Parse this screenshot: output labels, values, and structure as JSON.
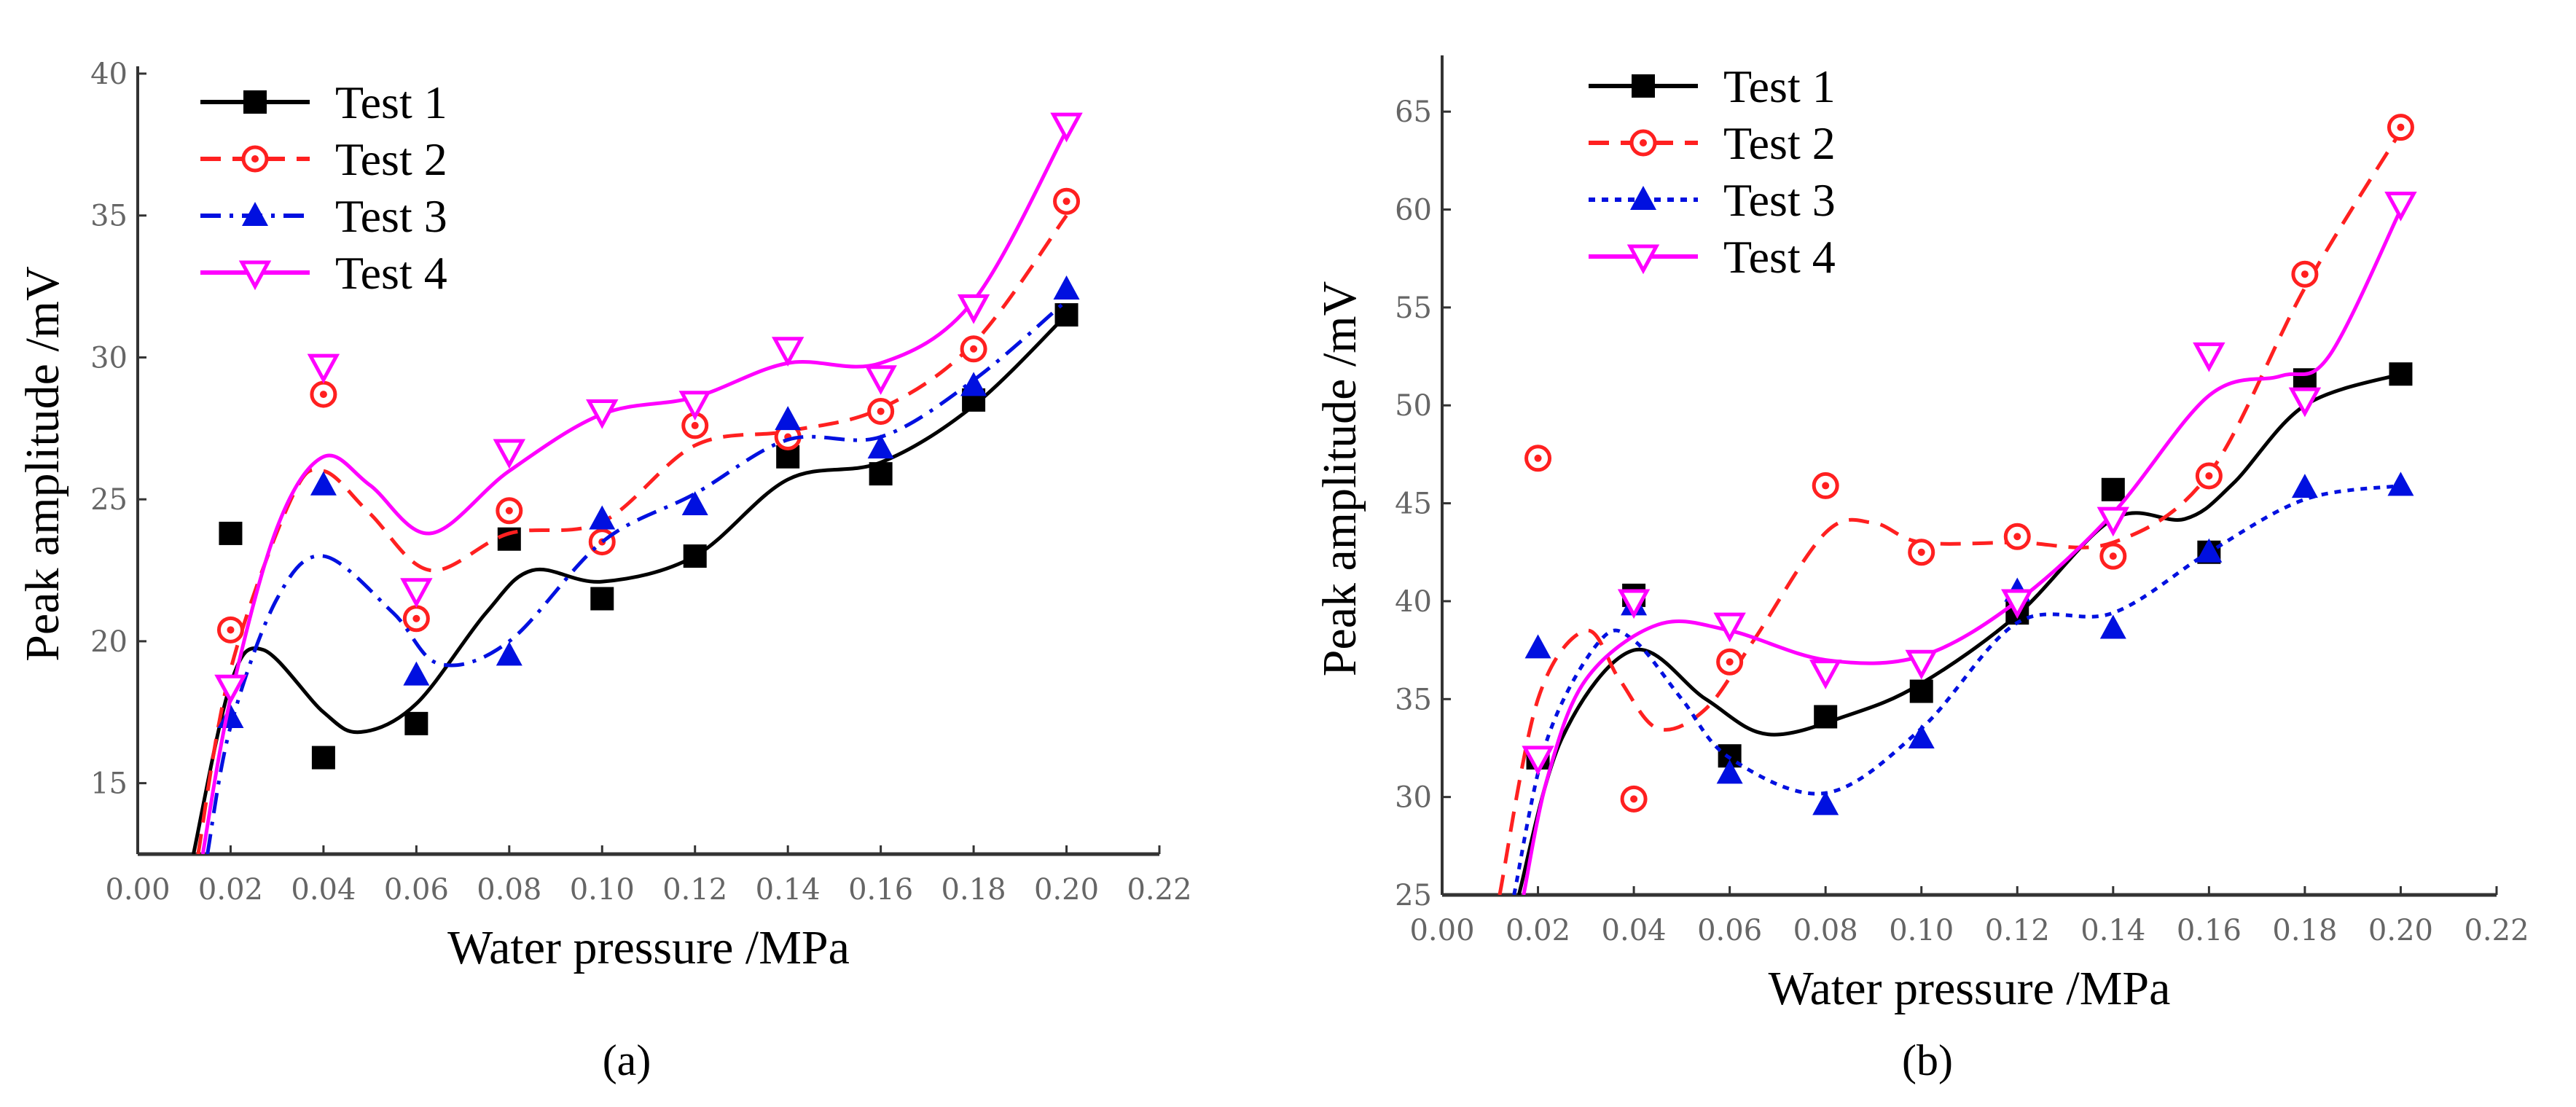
{
  "chart_data": [
    {
      "type": "scatter",
      "panel_label": "(a)",
      "xlabel": "Water pressure /MPa",
      "ylabel": "Peak amplitude /mV",
      "xlim": [
        0,
        0.22
      ],
      "ylim": [
        12.5,
        40
      ],
      "xticks": [
        "0.00",
        "0.02",
        "0.04",
        "0.06",
        "0.08",
        "0.10",
        "0.12",
        "0.14",
        "0.16",
        "0.18",
        "0.20",
        "0.22"
      ],
      "xtick_values": [
        0,
        0.02,
        0.04,
        0.06,
        0.08,
        0.1,
        0.12,
        0.14,
        0.16,
        0.18,
        0.2,
        0.22
      ],
      "yticks": [
        "15",
        "20",
        "25",
        "30",
        "35",
        "40"
      ],
      "ytick_values": [
        15,
        20,
        25,
        30,
        35,
        40
      ],
      "legend_position": "top-left",
      "x": [
        0.02,
        0.04,
        0.06,
        0.08,
        0.1,
        0.12,
        0.14,
        0.16,
        0.18,
        0.2
      ],
      "series": [
        {
          "name": "Test 1",
          "color": "#000000",
          "marker": "square",
          "dash": "solid",
          "values": [
            23.8,
            15.9,
            17.1,
            23.6,
            21.5,
            23.0,
            26.5,
            25.9,
            28.5,
            31.5
          ],
          "fit": [
            [
              0.012,
              12.5
            ],
            [
              0.02,
              18.5
            ],
            [
              0.027,
              19.7
            ],
            [
              0.04,
              17.5
            ],
            [
              0.048,
              16.8
            ],
            [
              0.06,
              17.8
            ],
            [
              0.075,
              21.0
            ],
            [
              0.085,
              22.5
            ],
            [
              0.1,
              22.1
            ],
            [
              0.12,
              23.0
            ],
            [
              0.14,
              25.7
            ],
            [
              0.16,
              26.3
            ],
            [
              0.18,
              28.3
            ],
            [
              0.2,
              31.5
            ]
          ]
        },
        {
          "name": "Test 2",
          "color": "#ff2020",
          "marker": "circle-dot",
          "dash": "dash",
          "values": [
            20.4,
            28.7,
            20.8,
            24.6,
            23.5,
            27.6,
            27.2,
            28.1,
            30.3,
            35.5
          ],
          "fit": [
            [
              0.013,
              12.5
            ],
            [
              0.02,
              19.0
            ],
            [
              0.033,
              25.0
            ],
            [
              0.04,
              26.0
            ],
            [
              0.05,
              24.5
            ],
            [
              0.063,
              22.5
            ],
            [
              0.08,
              23.8
            ],
            [
              0.1,
              24.2
            ],
            [
              0.12,
              26.9
            ],
            [
              0.14,
              27.4
            ],
            [
              0.16,
              28.2
            ],
            [
              0.18,
              30.5
            ],
            [
              0.2,
              35.0
            ]
          ]
        },
        {
          "name": "Test 3",
          "color": "#0010e0",
          "marker": "triangle-up",
          "dash": "dashdot",
          "values": [
            17.3,
            25.5,
            18.8,
            19.5,
            24.3,
            24.8,
            27.8,
            26.8,
            29.0,
            32.4
          ],
          "fit": [
            [
              0.015,
              12.5
            ],
            [
              0.02,
              17.0
            ],
            [
              0.03,
              21.5
            ],
            [
              0.04,
              23.0
            ],
            [
              0.055,
              21.0
            ],
            [
              0.065,
              19.2
            ],
            [
              0.08,
              20.0
            ],
            [
              0.1,
              23.5
            ],
            [
              0.12,
              25.2
            ],
            [
              0.14,
              27.1
            ],
            [
              0.16,
              27.2
            ],
            [
              0.18,
              29.2
            ],
            [
              0.2,
              32.0
            ]
          ]
        },
        {
          "name": "Test 4",
          "color": "#ff00ff",
          "marker": "triangle-down",
          "dash": "solid",
          "values": [
            18.4,
            29.7,
            21.8,
            26.7,
            28.1,
            28.4,
            30.3,
            29.3,
            31.8,
            38.2
          ],
          "fit": [
            [
              0.014,
              12.5
            ],
            [
              0.02,
              18.0
            ],
            [
              0.03,
              24.0
            ],
            [
              0.04,
              26.5
            ],
            [
              0.05,
              25.5
            ],
            [
              0.063,
              23.8
            ],
            [
              0.08,
              26.0
            ],
            [
              0.1,
              28.0
            ],
            [
              0.12,
              28.6
            ],
            [
              0.14,
              29.8
            ],
            [
              0.16,
              29.8
            ],
            [
              0.18,
              32.0
            ],
            [
              0.2,
              38.0
            ]
          ]
        }
      ]
    },
    {
      "type": "scatter",
      "panel_label": "(b)",
      "xlabel": "Water pressure /MPa",
      "ylabel": "Peak amplitude /mV",
      "xlim": [
        0,
        0.22
      ],
      "ylim": [
        25,
        67.5
      ],
      "xticks": [
        "0.00",
        "0.02",
        "0.04",
        "0.06",
        "0.08",
        "0.10",
        "0.12",
        "0.14",
        "0.16",
        "0.18",
        "0.20",
        "0.22"
      ],
      "xtick_values": [
        0,
        0.02,
        0.04,
        0.06,
        0.08,
        0.1,
        0.12,
        0.14,
        0.16,
        0.18,
        0.2,
        0.22
      ],
      "yticks": [
        "25",
        "30",
        "35",
        "40",
        "45",
        "50",
        "55",
        "60",
        "65"
      ],
      "ytick_values": [
        25,
        30,
        35,
        40,
        45,
        50,
        55,
        60,
        65
      ],
      "legend_position": "top-left",
      "x": [
        0.02,
        0.04,
        0.06,
        0.08,
        0.1,
        0.12,
        0.14,
        0.16,
        0.18,
        0.2
      ],
      "series": [
        {
          "name": "Test 1",
          "color": "#000000",
          "marker": "square",
          "dash": "solid",
          "values": [
            32.0,
            40.3,
            32.1,
            34.1,
            35.4,
            39.4,
            45.7,
            42.5,
            51.3,
            51.6
          ],
          "fit": [
            [
              0.016,
              25.0
            ],
            [
              0.025,
              33.0
            ],
            [
              0.04,
              37.5
            ],
            [
              0.055,
              35.0
            ],
            [
              0.068,
              33.2
            ],
            [
              0.085,
              34.2
            ],
            [
              0.1,
              35.8
            ],
            [
              0.12,
              39.3
            ],
            [
              0.14,
              44.2
            ],
            [
              0.155,
              44.2
            ],
            [
              0.165,
              46.0
            ],
            [
              0.18,
              50.0
            ],
            [
              0.2,
              51.6
            ]
          ]
        },
        {
          "name": "Test 2",
          "color": "#ff2020",
          "marker": "circle-dot",
          "dash": "dash",
          "values": [
            47.3,
            29.9,
            36.9,
            45.9,
            42.5,
            43.3,
            42.3,
            46.4,
            56.7,
            64.2
          ],
          "fit": [
            [
              0.012,
              25.0
            ],
            [
              0.02,
              35.0
            ],
            [
              0.03,
              38.5
            ],
            [
              0.037,
              36.0
            ],
            [
              0.045,
              33.5
            ],
            [
              0.055,
              34.5
            ],
            [
              0.065,
              38.0
            ],
            [
              0.08,
              43.5
            ],
            [
              0.09,
              44.0
            ],
            [
              0.1,
              43.0
            ],
            [
              0.12,
              43.0
            ],
            [
              0.14,
              43.0
            ],
            [
              0.16,
              46.5
            ],
            [
              0.18,
              56.0
            ],
            [
              0.2,
              64.0
            ]
          ]
        },
        {
          "name": "Test 3",
          "color": "#0010e0",
          "marker": "triangle-up",
          "dash": "dot",
          "values": [
            37.6,
            39.8,
            31.2,
            29.6,
            33.0,
            40.5,
            38.6,
            42.5,
            45.8,
            45.9
          ],
          "fit": [
            [
              0.015,
              25.0
            ],
            [
              0.022,
              33.0
            ],
            [
              0.033,
              38.0
            ],
            [
              0.04,
              38.0
            ],
            [
              0.05,
              35.0
            ],
            [
              0.06,
              32.0
            ],
            [
              0.08,
              30.2
            ],
            [
              0.1,
              33.5
            ],
            [
              0.12,
              38.9
            ],
            [
              0.14,
              39.4
            ],
            [
              0.16,
              42.5
            ],
            [
              0.18,
              45.2
            ],
            [
              0.2,
              45.9
            ]
          ]
        },
        {
          "name": "Test 4",
          "color": "#ff00ff",
          "marker": "triangle-down",
          "dash": "solid",
          "values": [
            32.0,
            40.0,
            38.8,
            36.4,
            36.9,
            40.0,
            44.2,
            52.6,
            50.3,
            60.3
          ],
          "fit": [
            [
              0.017,
              25.0
            ],
            [
              0.022,
              31.0
            ],
            [
              0.03,
              36.0
            ],
            [
              0.045,
              38.8
            ],
            [
              0.06,
              38.5
            ],
            [
              0.08,
              37.0
            ],
            [
              0.1,
              37.2
            ],
            [
              0.12,
              40.0
            ],
            [
              0.14,
              44.5
            ],
            [
              0.16,
              50.5
            ],
            [
              0.175,
              51.5
            ],
            [
              0.185,
              52.5
            ],
            [
              0.2,
              60.0
            ]
          ]
        }
      ]
    }
  ]
}
